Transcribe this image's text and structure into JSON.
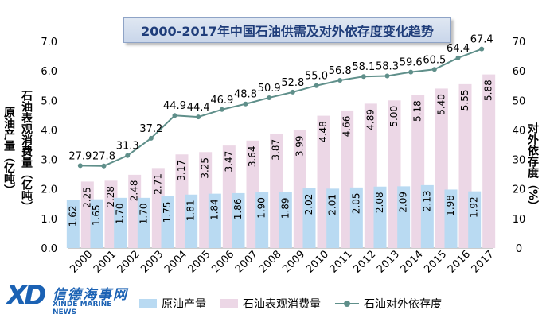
{
  "title": "2000-2017年中国石油供需及对外依存度变化趋势",
  "y_left_label_1": "原油产量（亿吨）",
  "y_left_label_2": "石油表观消费量（亿吨）",
  "y_right_label": "对外依存度（%）",
  "logo": {
    "mark": "XD",
    "cn": "信德海事网",
    "en": "XINDE MARINE NEWS"
  },
  "colors": {
    "production": "#b9daf2",
    "consumption": "#ecd7e6",
    "dependence": "#5f8f8a",
    "title_text": "#1f3d7a",
    "logo": "#1b62b4"
  },
  "chart_data": {
    "type": "bar",
    "title": "2000-2017年中国石油供需及对外依存度变化趋势",
    "categories": [
      "2000",
      "2001",
      "2002",
      "2003",
      "2004",
      "2005",
      "2006",
      "2007",
      "2008",
      "2009",
      "2010",
      "2011",
      "2012",
      "2013",
      "2014",
      "2015",
      "2016",
      "2017"
    ],
    "series": [
      {
        "name": "原油产量",
        "type": "bar",
        "axis": "left",
        "values": [
          1.62,
          1.65,
          1.7,
          1.7,
          1.75,
          1.81,
          1.84,
          1.86,
          1.9,
          1.89,
          2.02,
          2.01,
          2.05,
          2.08,
          2.09,
          2.13,
          1.98,
          1.92
        ],
        "labels": [
          "1.62",
          "1.65",
          "1.70",
          "1.70",
          "1.75",
          "1.81",
          "1.84",
          "1.86",
          "1.90",
          "1.89",
          "2.02",
          "2.01",
          "2.05",
          "2.08",
          "2.09",
          "2.13",
          "1.98",
          "1.92"
        ]
      },
      {
        "name": "石油表观消费量",
        "type": "bar",
        "axis": "left",
        "values": [
          2.25,
          2.28,
          2.48,
          2.71,
          3.17,
          3.25,
          3.47,
          3.64,
          3.87,
          3.99,
          4.48,
          4.66,
          4.89,
          5.0,
          5.18,
          5.4,
          5.55,
          5.88
        ],
        "labels": [
          "2.25",
          "2.28",
          "2.48",
          "2.71",
          "3.17",
          "3.25",
          "3.47",
          "3.64",
          "3.87",
          "3.99",
          "4.48",
          "4.66",
          "4.89",
          "5.00",
          "5.18",
          "5.40",
          "5.55",
          "5.88"
        ]
      },
      {
        "name": "石油对外依存度",
        "type": "line",
        "axis": "right",
        "values": [
          27.9,
          27.8,
          31.3,
          37.2,
          44.9,
          44.4,
          46.9,
          48.8,
          50.9,
          52.8,
          55.0,
          56.8,
          58.1,
          58.3,
          59.6,
          60.5,
          64.4,
          67.4
        ],
        "labels": [
          "27.9",
          "27.8",
          "31.3",
          "37.2",
          "44.9",
          "44.4",
          "46.9",
          "48.8",
          "50.9",
          "52.8",
          "55.0",
          "56.8",
          "58.1",
          "58.3",
          "59.6",
          "60.5",
          "64.4",
          "67.4"
        ]
      }
    ],
    "ylim_left": [
      0,
      7
    ],
    "ylim_right": [
      0,
      70
    ],
    "yticks_left": [
      "0.0",
      "1.0",
      "2.0",
      "3.0",
      "4.0",
      "5.0",
      "6.0",
      "7.0"
    ],
    "yticks_right": [
      "0",
      "10",
      "20",
      "30",
      "40",
      "50",
      "60",
      "70"
    ],
    "grid": false,
    "legend_position": "bottom"
  }
}
